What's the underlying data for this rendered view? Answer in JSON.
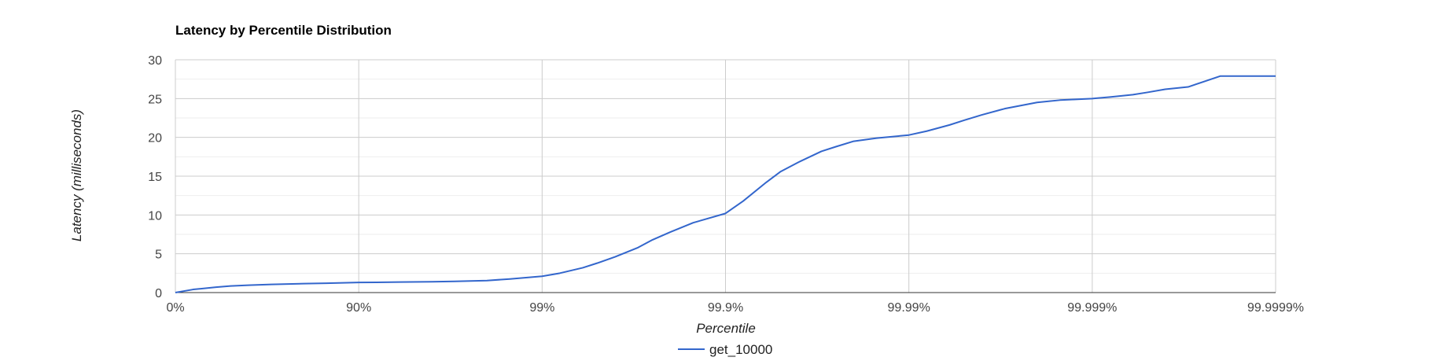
{
  "chart_data": {
    "type": "line",
    "title": "Latency by Percentile Distribution",
    "xlabel": "Percentile",
    "ylabel": "Latency (milliseconds)",
    "x_scale": "percentile-log (1 / (1 - p))",
    "x_ticks": [
      "0%",
      "90%",
      "99%",
      "99.9%",
      "99.99%",
      "99.999%",
      "99.9999%"
    ],
    "y_ticks": [
      0,
      5,
      10,
      15,
      20,
      25,
      30
    ],
    "ylim": [
      0,
      30
    ],
    "grid": true,
    "minor_gridlines_y": true,
    "legend": "bottom",
    "series": [
      {
        "name": "get_10000",
        "color": "#3366cc",
        "x": [
          0,
          20,
          40,
          50,
          60,
          70,
          80,
          85,
          90,
          92,
          94,
          96,
          97,
          98,
          98.5,
          99,
          99.2,
          99.4,
          99.5,
          99.6,
          99.7,
          99.75,
          99.8,
          99.85,
          99.9,
          99.92,
          99.94,
          99.95,
          99.96,
          99.97,
          99.975,
          99.98,
          99.985,
          99.99,
          99.992,
          99.994,
          99.995,
          99.996,
          99.997,
          99.998,
          99.9985,
          99.999,
          99.9992,
          99.9994,
          99.9995,
          99.9996,
          99.9997,
          99.9998,
          99.99985,
          99.9999
        ],
        "values": [
          0,
          0.4,
          0.7,
          0.85,
          0.95,
          1.05,
          1.15,
          1.2,
          1.3,
          1.32,
          1.35,
          1.4,
          1.45,
          1.55,
          1.75,
          2.1,
          2.5,
          3.2,
          3.8,
          4.6,
          5.8,
          6.8,
          7.8,
          9.0,
          10.2,
          11.8,
          14.2,
          15.6,
          16.8,
          18.2,
          18.8,
          19.5,
          19.9,
          20.3,
          20.8,
          21.6,
          22.2,
          22.9,
          23.7,
          24.5,
          24.8,
          25.0,
          25.2,
          25.5,
          25.8,
          26.2,
          26.5,
          27.9,
          27.9,
          27.9
        ]
      }
    ]
  }
}
